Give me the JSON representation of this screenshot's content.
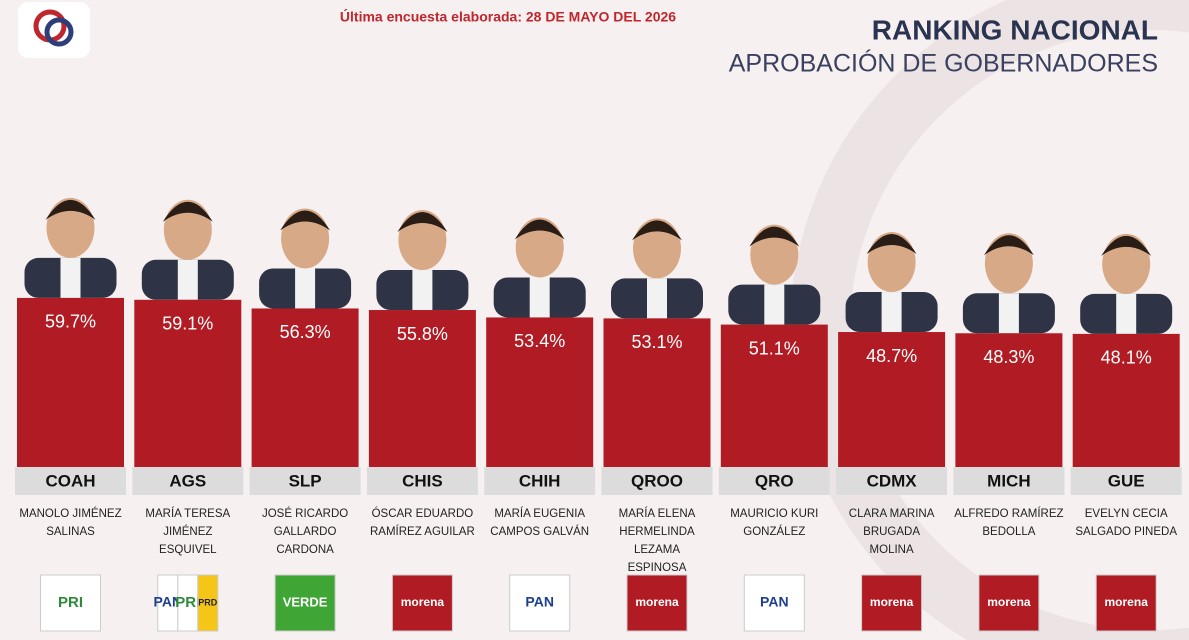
{
  "chart_data": {
    "type": "bar",
    "title": "RANKING NACIONAL",
    "subtitle": "APROBACIÓN DE GOBERNADORES",
    "note": "Última encuesta elaborada: 28 DE MAYO DEL 2026",
    "categories": [
      "COAH",
      "AGS",
      "SLP",
      "CHIS",
      "CHIH",
      "QROO",
      "QRO",
      "CDMX",
      "MICH",
      "GUE"
    ],
    "values": [
      59.7,
      59.1,
      56.3,
      55.8,
      53.4,
      53.1,
      51.1,
      48.7,
      48.3,
      48.1
    ],
    "value_labels": [
      "59.7%",
      "59.1%",
      "56.3%",
      "55.8%",
      "53.4%",
      "53.1%",
      "51.1%",
      "48.7%",
      "48.3%",
      "48.1%"
    ],
    "names": [
      [
        "MANOLO JIMÉNEZ",
        "SALINAS"
      ],
      [
        "MARÍA TERESA",
        "JIMÉNEZ",
        "ESQUIVEL"
      ],
      [
        "JOSÉ RICARDO",
        "GALLARDO",
        "CARDONA"
      ],
      [
        "ÓSCAR EDUARDO",
        "RAMÍREZ AGUILAR"
      ],
      [
        "MARÍA EUGENIA",
        "CAMPOS GALVÁN"
      ],
      [
        "MARÍA ELENA",
        "HERMELINDA",
        "LEZAMA",
        "ESPINOSA"
      ],
      [
        "MAURICIO KURI",
        "GONZÁLEZ"
      ],
      [
        "CLARA MARINA",
        "BRUGADA",
        "MOLINA"
      ],
      [
        "ALFREDO RAMÍREZ",
        "BEDOLLA"
      ],
      [
        "EVELYN CECIA",
        "SALGADO PINEDA"
      ]
    ],
    "parties": [
      [
        "PRI"
      ],
      [
        "PAN",
        "PRI",
        "PRD"
      ],
      [
        "VERDE"
      ],
      [
        "morena"
      ],
      [
        "PAN"
      ],
      [
        "morena"
      ],
      [
        "PAN"
      ],
      [
        "morena"
      ],
      [
        "morena"
      ],
      [
        "morena"
      ]
    ],
    "color": "#b11c24"
  }
}
